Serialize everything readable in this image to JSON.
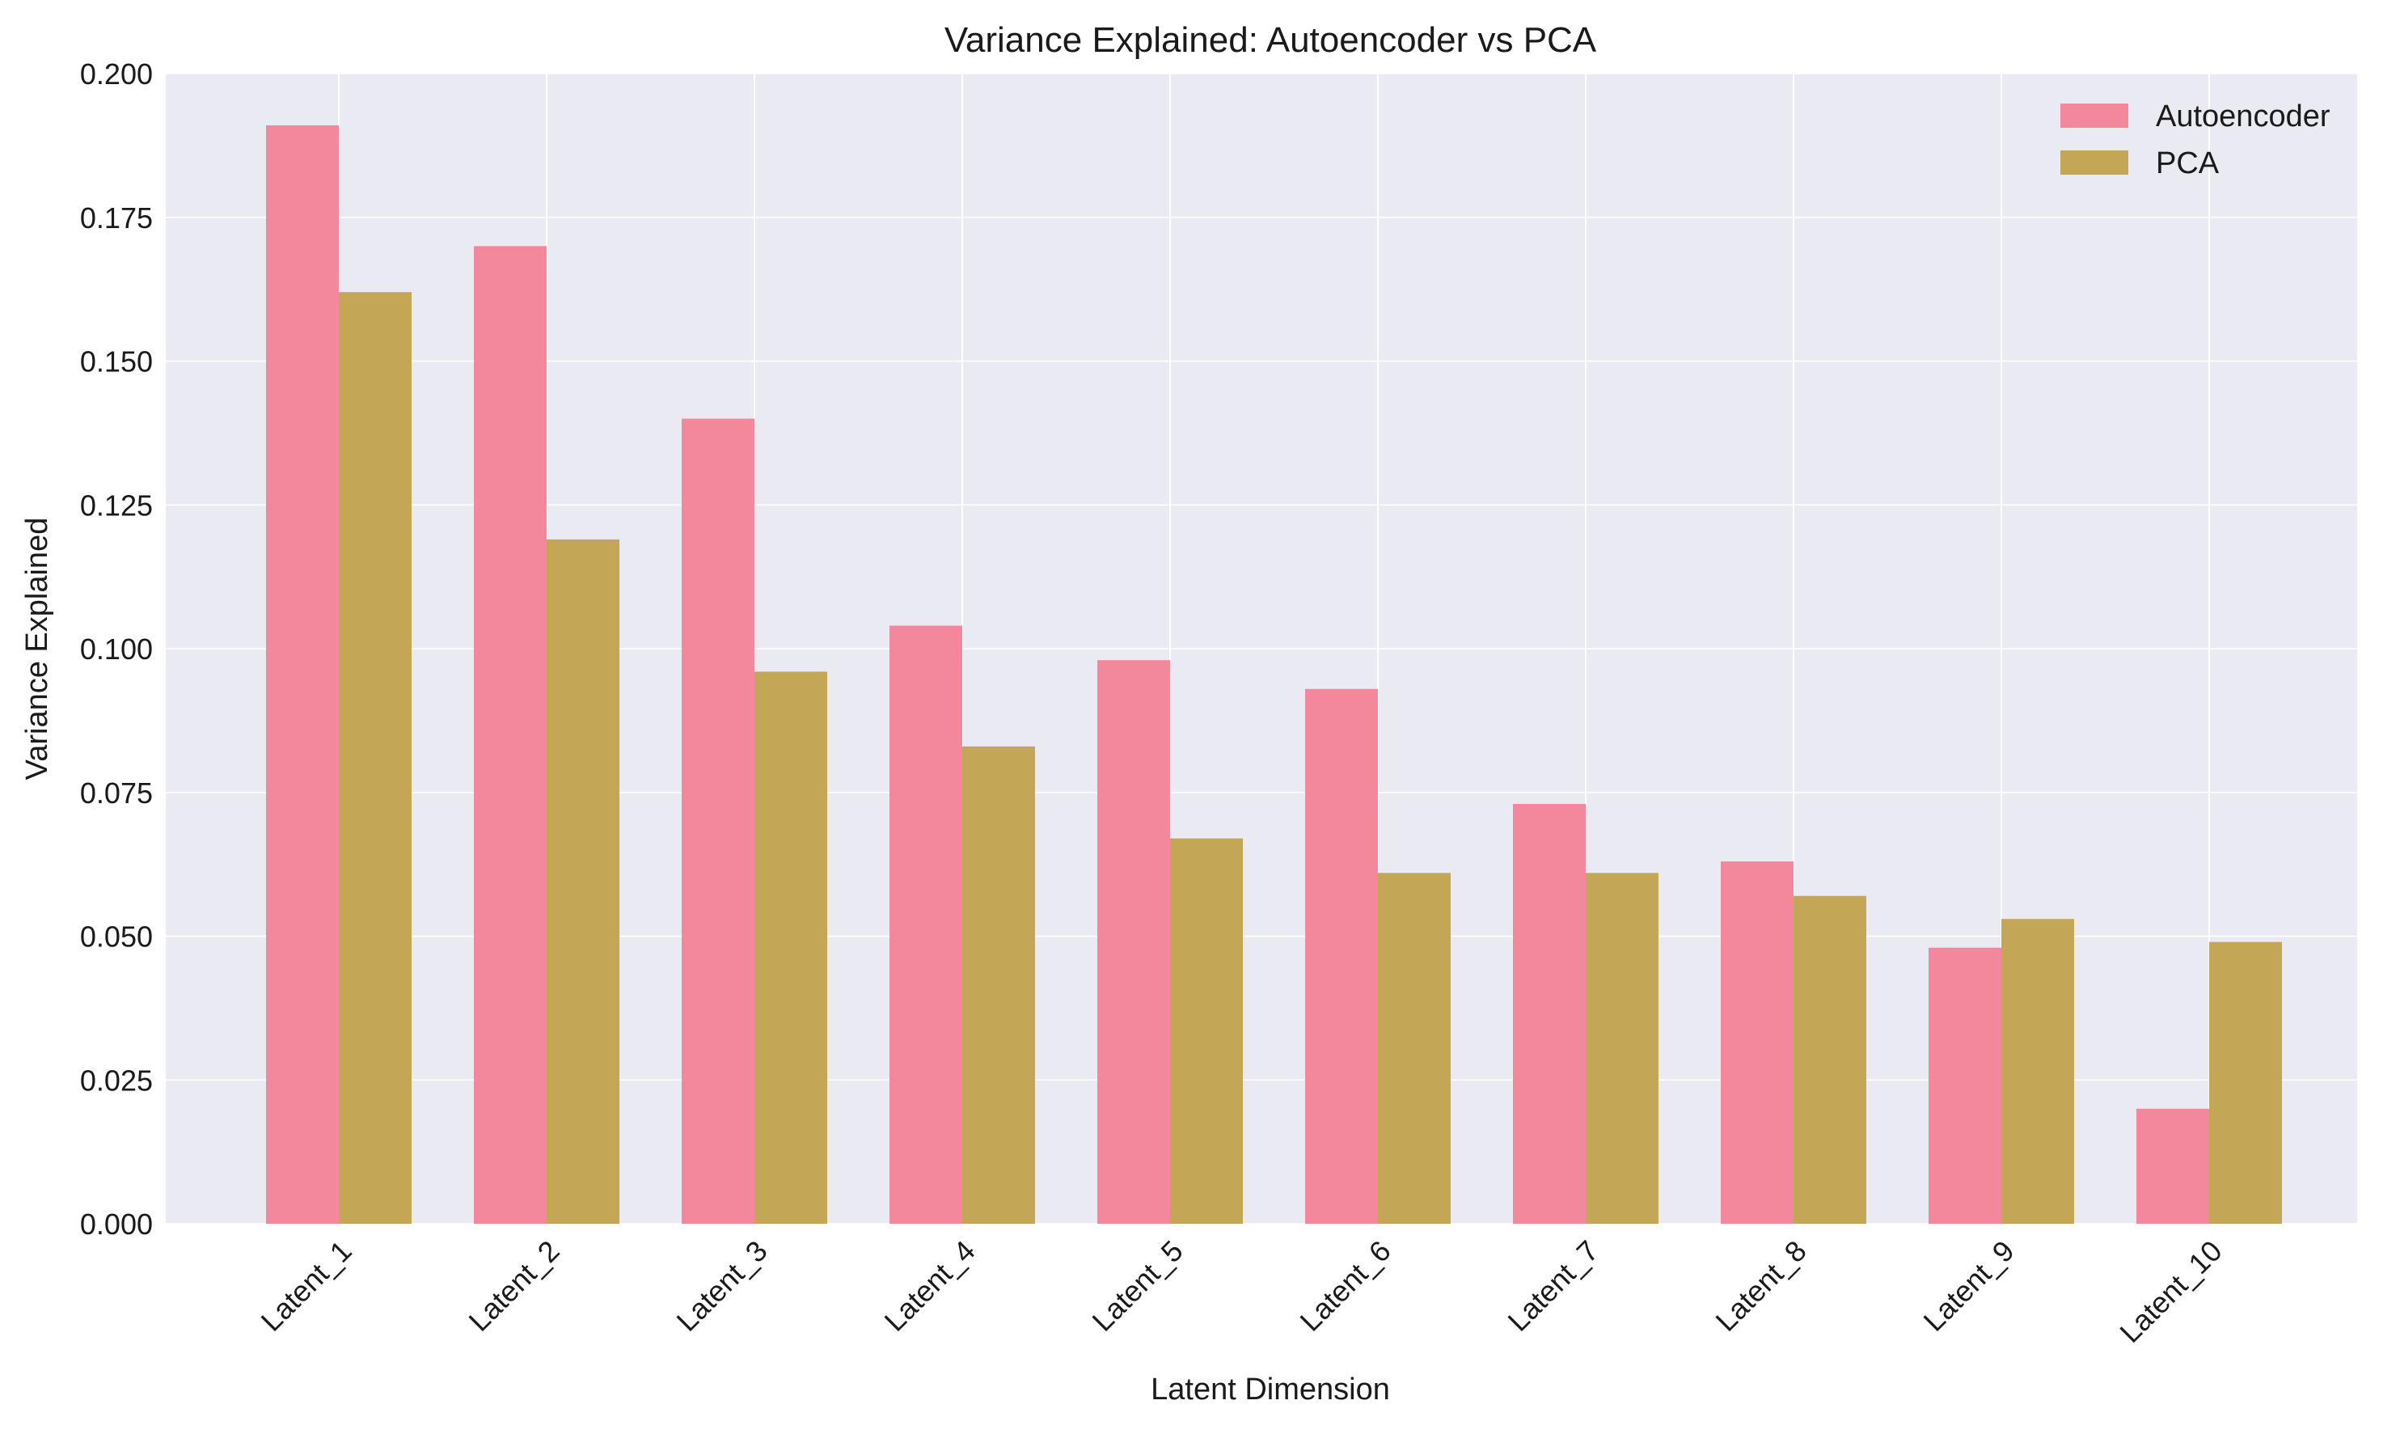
{
  "chart_data": {
    "type": "bar",
    "title": "Variance Explained: Autoencoder vs PCA",
    "xlabel": "Latent Dimension",
    "ylabel": "Variance Explained",
    "categories": [
      "Latent_1",
      "Latent_2",
      "Latent_3",
      "Latent_4",
      "Latent_5",
      "Latent_6",
      "Latent_7",
      "Latent_8",
      "Latent_9",
      "Latent_10"
    ],
    "series": [
      {
        "name": "Autoencoder",
        "color": "#f3889c",
        "values": [
          0.191,
          0.17,
          0.14,
          0.104,
          0.098,
          0.093,
          0.073,
          0.063,
          0.048,
          0.02
        ]
      },
      {
        "name": "PCA",
        "color": "#c3a757",
        "values": [
          0.162,
          0.119,
          0.096,
          0.083,
          0.067,
          0.061,
          0.061,
          0.057,
          0.053,
          0.049
        ]
      }
    ],
    "ylim": [
      0,
      0.2
    ],
    "yticks": [
      "0.000",
      "0.025",
      "0.050",
      "0.075",
      "0.100",
      "0.125",
      "0.150",
      "0.175",
      "0.200"
    ],
    "grid": true,
    "legend_position": "top-right",
    "plot_background": "#eaeaf2",
    "grid_color": "#ffffff"
  }
}
